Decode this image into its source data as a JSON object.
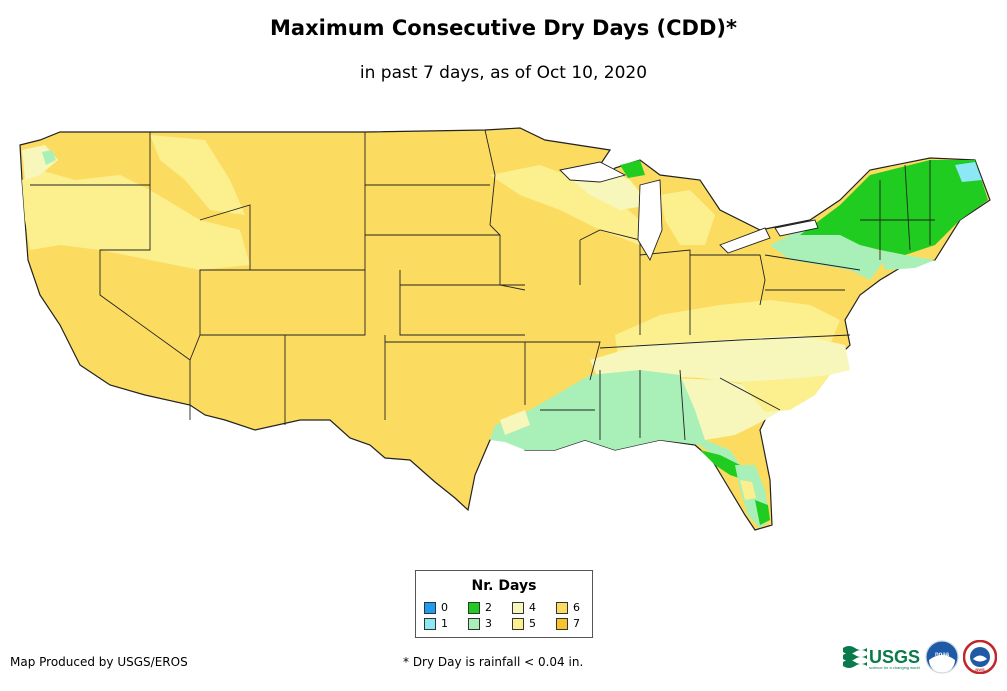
{
  "title": "Maximum Consecutive Dry Days (CDD)*",
  "subtitle": "in past 7 days, as of Oct 10, 2020",
  "legend": {
    "title": "Nr. Days",
    "items": [
      {
        "label": "0",
        "color": "#1e9cf0"
      },
      {
        "label": "1",
        "color": "#8ce8f5"
      },
      {
        "label": "2",
        "color": "#1fcc1f"
      },
      {
        "label": "3",
        "color": "#a8f0b8"
      },
      {
        "label": "4",
        "color": "#f7f7bb"
      },
      {
        "label": "5",
        "color": "#fcef8e"
      },
      {
        "label": "6",
        "color": "#fcdc60"
      },
      {
        "label": "7",
        "color": "#f7c22a"
      }
    ]
  },
  "footer": {
    "credit": "Map Produced by USGS/EROS",
    "note": "* Dry Day is rainfall < 0.04 in."
  },
  "logos": {
    "usgs": "USGS",
    "usgs_tagline": "science for a changing world",
    "noaa": "noaa",
    "nws": "NWS"
  }
}
